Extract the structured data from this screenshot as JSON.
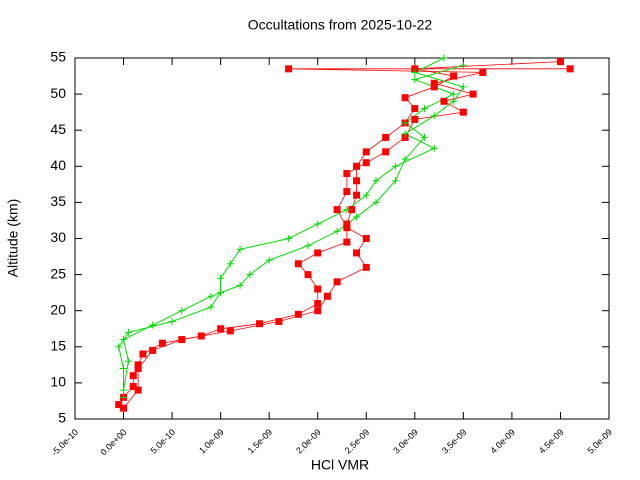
{
  "chart_data": {
    "type": "line",
    "title": "Occultations from 2025-10-22",
    "xlabel": "HCl VMR",
    "ylabel": "Altitude (km)",
    "xlim": [
      -5e-10,
      5e-09
    ],
    "ylim": [
      5,
      55
    ],
    "xticks": [
      {
        "value": -5e-10,
        "label": "-5.0e-10"
      },
      {
        "value": 0,
        "label": "0.0e+00"
      },
      {
        "value": 5e-10,
        "label": "5.0e-10"
      },
      {
        "value": 1e-09,
        "label": "1.0e-09"
      },
      {
        "value": 1.5e-09,
        "label": "1.5e-09"
      },
      {
        "value": 2e-09,
        "label": "2.0e-09"
      },
      {
        "value": 2.5e-09,
        "label": "2.5e-09"
      },
      {
        "value": 3e-09,
        "label": "3.0e-09"
      },
      {
        "value": 3.5e-09,
        "label": "3.5e-09"
      },
      {
        "value": 4e-09,
        "label": "4.0e-09"
      },
      {
        "value": 4.5e-09,
        "label": "4.5e-09"
      },
      {
        "value": 5e-09,
        "label": "5.0e-09"
      }
    ],
    "yticks": [
      5,
      10,
      15,
      20,
      25,
      30,
      35,
      40,
      45,
      50,
      55
    ],
    "grid": false,
    "series": [
      {
        "color": "#ff0000",
        "marker": "square",
        "x": [
          -5e-11,
          0,
          1e-10,
          1e-10,
          1.5e-10,
          2e-10,
          4e-10,
          8e-10,
          1e-09,
          1.4e-09,
          1.8e-09,
          2e-09,
          2e-09,
          1.9e-09,
          1.8e-09,
          2e-09,
          2.3e-09,
          2.3e-09,
          2.35e-09,
          2.4e-09,
          2.4e-09,
          2.4e-09,
          2.5e-09,
          2.7e-09,
          2.9e-09,
          3e-09,
          2.9e-09,
          3.2e-09,
          3.4e-09,
          3e-09,
          4.5e-09
        ],
        "values": [
          7,
          8,
          9.5,
          11,
          12.5,
          14,
          15.5,
          16.5,
          17.5,
          18.2,
          19.5,
          21,
          23,
          25,
          26.5,
          28,
          29.5,
          32,
          34,
          36,
          38,
          40,
          42,
          44,
          46,
          48,
          49.5,
          51,
          52.5,
          53.5,
          54.5
        ]
      },
      {
        "color": "#ff0000",
        "marker": "square",
        "x": [
          0,
          1.5e-10,
          1.5e-10,
          3e-10,
          6e-10,
          1.1e-09,
          1.6e-09,
          2e-09,
          2.1e-09,
          2.2e-09,
          2.5e-09,
          2.4e-09,
          2.5e-09,
          2.3e-09,
          2.2e-09,
          2.3e-09,
          2.3e-09,
          2.5e-09,
          2.7e-09,
          2.9e-09,
          3e-09,
          3.5e-09,
          3.3e-09,
          3.6e-09,
          3.2e-09,
          3.7e-09,
          1.7e-09,
          4.6e-09
        ],
        "values": [
          6.5,
          9,
          12,
          14.5,
          16,
          17.2,
          18.5,
          20,
          22,
          24,
          26,
          28,
          30,
          31.5,
          34,
          36.5,
          39,
          40.5,
          42,
          44,
          46.5,
          47.5,
          49,
          50,
          51.5,
          53,
          53.5,
          53.5
        ]
      },
      {
        "color": "#00dd00",
        "marker": "plus",
        "x": [
          0,
          0,
          -5e-11,
          5e-11,
          5e-10,
          9e-10,
          1e-09,
          1e-09,
          1.1e-09,
          1.2e-09,
          1.7e-09,
          2e-09,
          2.3e-09,
          2.5e-09,
          2.6e-09,
          2.8e-09,
          3.2e-09,
          2.9e-09,
          3.2e-09,
          3.4e-09,
          3.5e-09,
          3e-09,
          3.3e-09
        ],
        "values": [
          8,
          12,
          15,
          17,
          18.5,
          20.5,
          22.5,
          24.5,
          26.5,
          28.5,
          30,
          32,
          34,
          36,
          38,
          40,
          42.5,
          44.5,
          47,
          49,
          51,
          53,
          55
        ]
      },
      {
        "color": "#00dd00",
        "marker": "plus",
        "x": [
          0,
          5e-11,
          0,
          3e-10,
          6e-10,
          9e-10,
          1.2e-09,
          1.3e-09,
          1.5e-09,
          1.9e-09,
          2.2e-09,
          2.4e-09,
          2.6e-09,
          2.8e-09,
          2.9e-09,
          3.1e-09,
          2.9e-09,
          3.1e-09,
          3.4e-09,
          3e-09,
          3.5e-09
        ],
        "values": [
          9,
          13,
          16,
          18,
          20,
          22,
          23.5,
          25,
          27,
          29,
          31,
          33,
          35,
          38,
          41,
          44,
          46,
          48,
          50,
          52,
          54
        ]
      }
    ]
  }
}
